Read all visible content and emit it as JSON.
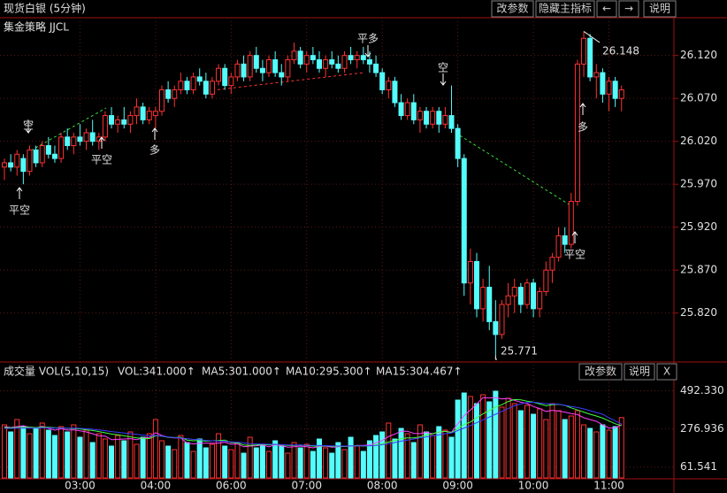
{
  "toolbar": {
    "title": "现货白银 (5分钟)",
    "buttons": [
      "改参数",
      "隐藏主指标",
      "←",
      "→",
      "说明"
    ]
  },
  "chart_data": [
    {
      "type": "candlestick",
      "subtitle": "集金策略 JJCL",
      "up_color": "#ff3232",
      "down_color": "#54fcfc",
      "ylim": [
        25.764,
        26.164
      ],
      "yticks": [
        {
          "value": 25.82,
          "label": "25.820"
        },
        {
          "value": 25.87,
          "label": "25.870"
        },
        {
          "value": 25.92,
          "label": "25.920"
        },
        {
          "value": 25.97,
          "label": "25.970"
        },
        {
          "value": 26.02,
          "label": "26.020"
        },
        {
          "value": 26.07,
          "label": "26.070"
        },
        {
          "value": 26.12,
          "label": "26.120"
        }
      ],
      "grid": true,
      "signals": [
        {
          "text": "平空",
          "color": "#ff3c3c"
        },
        {
          "text": "空",
          "color": "#3cdc3c"
        },
        {
          "text": "平空",
          "color": "#ff3c3c"
        },
        {
          "text": "多",
          "color": "#ff3c3c"
        },
        {
          "text": "平多",
          "color": "#3cdc3c"
        },
        {
          "text": "空",
          "color": "#3cdc3c"
        },
        {
          "text": "平空",
          "color": "#ff3c3c"
        },
        {
          "text": "多",
          "color": "#ff3c3c"
        }
      ],
      "ohlc": [
        [
          25.99,
          26.0,
          25.975,
          25.995
        ],
        [
          25.995,
          26.005,
          25.985,
          25.99
        ],
        [
          25.99,
          26.01,
          25.98,
          26.005
        ],
        [
          26.0,
          26.005,
          25.97,
          25.985
        ],
        [
          25.985,
          26.015,
          25.98,
          26.01
        ],
        [
          26.01,
          26.015,
          25.99,
          25.995
        ],
        [
          25.995,
          26.02,
          25.99,
          26.015
        ],
        [
          26.015,
          26.025,
          26.0,
          26.005
        ],
        [
          26.005,
          26.015,
          25.995,
          26.0
        ],
        [
          26.0,
          26.03,
          25.995,
          26.025
        ],
        [
          26.025,
          26.035,
          26.01,
          26.015
        ],
        [
          26.015,
          26.03,
          26.005,
          26.025
        ],
        [
          26.025,
          26.04,
          26.015,
          26.02
        ],
        [
          26.02,
          26.035,
          26.01,
          26.03
        ],
        [
          26.03,
          26.045,
          26.015,
          26.02
        ],
        [
          26.02,
          26.03,
          26.01,
          26.025
        ],
        [
          26.025,
          26.055,
          26.02,
          26.05
        ],
        [
          26.05,
          26.06,
          26.035,
          26.04
        ],
        [
          26.04,
          26.05,
          26.03,
          26.045
        ],
        [
          26.045,
          26.06,
          26.035,
          26.04
        ],
        [
          26.04,
          26.055,
          26.03,
          26.05
        ],
        [
          26.05,
          26.07,
          26.04,
          26.06
        ],
        [
          26.06,
          26.065,
          26.04,
          26.045
        ],
        [
          26.045,
          26.06,
          26.04,
          26.055
        ],
        [
          26.05,
          26.06,
          26.035,
          26.055
        ],
        [
          26.055,
          26.085,
          26.05,
          26.08
        ],
        [
          26.08,
          26.09,
          26.065,
          26.07
        ],
        [
          26.07,
          26.085,
          26.06,
          26.08
        ],
        [
          26.08,
          26.1,
          26.075,
          26.09
        ],
        [
          26.09,
          26.095,
          26.075,
          26.08
        ],
        [
          26.08,
          26.1,
          26.075,
          26.095
        ],
        [
          26.095,
          26.105,
          26.085,
          26.09
        ],
        [
          26.09,
          26.1,
          26.07,
          26.075
        ],
        [
          26.075,
          26.095,
          26.07,
          26.09
        ],
        [
          26.09,
          26.11,
          26.085,
          26.105
        ],
        [
          26.105,
          26.11,
          26.08,
          26.085
        ],
        [
          26.085,
          26.1,
          26.075,
          26.095
        ],
        [
          26.095,
          26.115,
          26.09,
          26.11
        ],
        [
          26.11,
          26.12,
          26.09,
          26.095
        ],
        [
          26.095,
          26.125,
          26.09,
          26.12
        ],
        [
          26.12,
          26.13,
          26.1,
          26.105
        ],
        [
          26.105,
          26.115,
          26.09,
          26.1
        ],
        [
          26.1,
          26.12,
          26.095,
          26.115
        ],
        [
          26.115,
          26.125,
          26.095,
          26.1
        ],
        [
          26.1,
          26.11,
          26.085,
          26.095
        ],
        [
          26.095,
          26.12,
          26.09,
          26.115
        ],
        [
          26.115,
          26.135,
          26.11,
          26.125
        ],
        [
          26.125,
          26.13,
          26.105,
          26.11
        ],
        [
          26.11,
          26.125,
          26.1,
          26.12
        ],
        [
          26.12,
          26.13,
          26.11,
          26.115
        ],
        [
          26.115,
          26.125,
          26.1,
          26.105
        ],
        [
          26.105,
          26.12,
          26.095,
          26.115
        ],
        [
          26.115,
          26.125,
          26.105,
          26.11
        ],
        [
          26.11,
          26.12,
          26.1,
          26.105
        ],
        [
          26.105,
          26.125,
          26.1,
          26.12
        ],
        [
          26.12,
          26.13,
          26.11,
          26.115
        ],
        [
          26.115,
          26.125,
          26.105,
          26.12
        ],
        [
          26.12,
          26.13,
          26.11,
          26.115
        ],
        [
          26.115,
          26.125,
          26.1,
          26.11
        ],
        [
          26.11,
          26.12,
          26.095,
          26.1
        ],
        [
          26.1,
          26.105,
          26.075,
          26.08
        ],
        [
          26.08,
          26.095,
          26.07,
          26.09
        ],
        [
          26.09,
          26.095,
          26.06,
          26.065
        ],
        [
          26.065,
          26.075,
          26.045,
          26.05
        ],
        [
          26.05,
          26.07,
          26.045,
          26.065
        ],
        [
          26.065,
          26.075,
          26.04,
          26.045
        ],
        [
          26.045,
          26.06,
          26.03,
          26.055
        ],
        [
          26.055,
          26.06,
          26.035,
          26.04
        ],
        [
          26.04,
          26.06,
          26.035,
          26.055
        ],
        [
          26.055,
          26.06,
          26.03,
          26.04
        ],
        [
          26.04,
          26.06,
          26.035,
          26.05
        ],
        [
          26.05,
          26.085,
          26.03,
          26.035
        ],
        [
          26.035,
          26.04,
          25.99,
          26.0
        ],
        [
          26.0,
          26.005,
          25.84,
          25.855
        ],
        [
          25.855,
          25.895,
          25.83,
          25.88
        ],
        [
          25.88,
          25.89,
          25.815,
          25.825
        ],
        [
          25.825,
          25.86,
          25.81,
          25.85
        ],
        [
          25.85,
          25.875,
          25.8,
          25.81
        ],
        [
          25.81,
          25.835,
          25.771,
          25.795
        ],
        [
          25.795,
          25.835,
          25.79,
          25.83
        ],
        [
          25.83,
          25.855,
          25.815,
          25.84
        ],
        [
          25.84,
          25.86,
          25.82,
          25.85
        ],
        [
          25.85,
          25.855,
          25.82,
          25.83
        ],
        [
          25.83,
          25.86,
          25.825,
          25.855
        ],
        [
          25.855,
          25.86,
          25.815,
          25.825
        ],
        [
          25.825,
          25.85,
          25.815,
          25.845
        ],
        [
          25.845,
          25.88,
          25.84,
          25.87
        ],
        [
          25.87,
          25.89,
          25.855,
          25.885
        ],
        [
          25.885,
          25.92,
          25.88,
          25.91
        ],
        [
          25.91,
          25.92,
          25.89,
          25.9
        ],
        [
          25.9,
          25.96,
          25.895,
          25.95
        ],
        [
          25.95,
          26.115,
          25.945,
          26.11
        ],
        [
          26.11,
          26.148,
          26.095,
          26.14
        ],
        [
          26.14,
          26.145,
          26.09,
          26.095
        ],
        [
          26.095,
          26.11,
          26.07,
          26.1
        ],
        [
          26.1,
          26.105,
          26.065,
          26.075
        ],
        [
          26.075,
          26.095,
          26.055,
          26.09
        ],
        [
          26.09,
          26.095,
          26.06,
          26.07
        ],
        [
          26.07,
          26.085,
          26.055,
          26.08
        ]
      ]
    },
    {
      "type": "bar",
      "title": "成交量 VOL(5,10,15)",
      "value_label": "VOL:341.000↑",
      "buttons": [
        "改参数",
        "说明",
        "X"
      ],
      "ylim": [
        0,
        560
      ],
      "yticks": [
        61.541,
        276.936,
        {
          "value": 492.33,
          "label": "492.330"
        }
      ],
      "categories": [
        null,
        null,
        null,
        null,
        null,
        null,
        null,
        null,
        null,
        null,
        null,
        null,
        "03:00",
        null,
        null,
        null,
        null,
        null,
        null,
        null,
        null,
        null,
        null,
        null,
        "04:00",
        null,
        null,
        null,
        null,
        null,
        null,
        null,
        null,
        null,
        null,
        null,
        "06:00",
        null,
        null,
        null,
        null,
        null,
        null,
        null,
        null,
        null,
        null,
        null,
        "07:00",
        null,
        null,
        null,
        null,
        null,
        null,
        null,
        null,
        null,
        null,
        null,
        "08:00",
        null,
        null,
        null,
        null,
        null,
        null,
        null,
        null,
        null,
        null,
        null,
        "09:00",
        null,
        null,
        null,
        null,
        null,
        null,
        null,
        null,
        null,
        null,
        null,
        "10:00",
        null,
        null,
        null,
        null,
        null,
        null,
        null,
        null,
        null,
        null,
        null,
        "11:00",
        null,
        null
      ],
      "values": [
        300,
        260,
        330,
        290,
        250,
        280,
        310,
        270,
        240,
        290,
        260,
        300,
        230,
        270,
        200,
        250,
        220,
        180,
        240,
        210,
        260,
        190,
        230,
        250,
        330,
        210,
        180,
        160,
        240,
        200,
        150,
        220,
        170,
        190,
        250,
        180,
        160,
        200,
        140,
        230,
        170,
        190,
        150,
        210,
        180,
        140,
        200,
        170,
        190,
        150,
        220,
        170,
        140,
        200,
        160,
        230,
        180,
        150,
        210,
        240,
        260,
        310,
        220,
        280,
        250,
        200,
        300,
        260,
        240,
        290,
        270,
        230,
        440,
        480,
        460,
        420,
        470,
        430,
        490,
        400,
        450,
        420,
        380,
        410,
        360,
        390,
        330,
        420,
        380,
        330,
        350,
        380,
        300,
        280,
        260,
        300,
        270,
        290,
        341
      ],
      "series": [
        {
          "name": "MA5:301.000↑",
          "color": "#ff40ff",
          "values": [
            290,
            285,
            290,
            295,
            286,
            282,
            292,
            280,
            270,
            278,
            270,
            272,
            266,
            260,
            250,
            238,
            236,
            216,
            218,
            220,
            222,
            216,
            226,
            228,
            256,
            240,
            230,
            226,
            226,
            198,
            192,
            196,
            196,
            196,
            196,
            202,
            190,
            192,
            176,
            180,
            182,
            186,
            176,
            188,
            182,
            174,
            176,
            180,
            176,
            170,
            178,
            180,
            174,
            176,
            178,
            180,
            184,
            184,
            186,
            198,
            212,
            234,
            248,
            264,
            264,
            252,
            250,
            258,
            250,
            258,
            264,
            258,
            306,
            352,
            384,
            418,
            454,
            452,
            454,
            446,
            450,
            438,
            428,
            420,
            404,
            392,
            376,
            382,
            378,
            372,
            364,
            358,
            340,
            330,
            320,
            300,
            282,
            284,
            301
          ]
        },
        {
          "name": "MA10:295.300↑",
          "color": "#40ff40",
          "values": [
            285,
            284,
            285,
            287,
            286,
            285,
            287,
            286,
            284,
            283,
            280,
            279,
            277,
            272,
            268,
            262,
            255,
            248,
            244,
            238,
            232,
            226,
            224,
            222,
            238,
            236,
            230,
            228,
            230,
            214,
            210,
            212,
            208,
            210,
            211,
            214,
            200,
            198,
            186,
            184,
            186,
            190,
            186,
            190,
            186,
            184,
            184,
            186,
            183,
            180,
            180,
            182,
            178,
            178,
            178,
            182,
            183,
            180,
            181,
            187,
            193,
            203,
            211,
            222,
            226,
            226,
            232,
            242,
            250,
            260,
            263,
            256,
            279,
            302,
            316,
            340,
            362,
            381,
            400,
            414,
            432,
            443,
            441,
            434,
            428,
            418,
            408,
            414,
            416,
            410,
            396,
            384,
            372,
            360,
            350,
            338,
            322,
            306,
            295.3
          ]
        },
        {
          "name": "MA15:304.467↑",
          "color": "#3c3cff",
          "values": [
            280,
            280,
            281,
            282,
            282,
            282,
            283,
            283,
            282,
            282,
            281,
            281,
            280,
            278,
            275,
            271,
            267,
            262,
            258,
            254,
            250,
            246,
            242,
            238,
            240,
            236,
            232,
            228,
            226,
            222,
            218,
            216,
            212,
            210,
            208,
            206,
            204,
            202,
            198,
            194,
            192,
            192,
            190,
            190,
            188,
            186,
            186,
            186,
            185,
            184,
            183,
            182,
            181,
            180,
            180,
            181,
            181,
            181,
            182,
            184,
            188,
            194,
            200,
            208,
            214,
            220,
            226,
            232,
            238,
            244,
            250,
            254,
            268,
            282,
            296,
            312,
            328,
            344,
            360,
            376,
            392,
            408,
            418,
            426,
            428,
            424,
            420,
            418,
            416,
            410,
            404,
            398,
            390,
            380,
            370,
            360,
            340,
            322,
            304.467
          ]
        }
      ]
    }
  ]
}
